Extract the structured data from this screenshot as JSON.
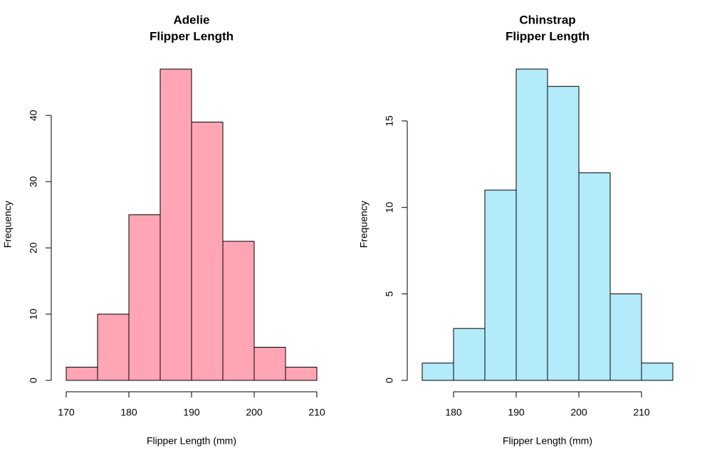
{
  "chart_data": [
    {
      "type": "histogram",
      "title": [
        "Adelie",
        "Flipper Length"
      ],
      "xlabel": "Flipper Length (mm)",
      "ylabel": "Frequency",
      "bins": [
        170,
        175,
        180,
        185,
        190,
        195,
        200,
        205,
        210
      ],
      "values": [
        2,
        10,
        25,
        47,
        39,
        21,
        5,
        2
      ],
      "color": "#ffa5b4",
      "xlim": [
        170,
        210
      ],
      "ylim": [
        0,
        47
      ],
      "xticks": [
        170,
        180,
        190,
        200,
        210
      ],
      "yticks": [
        0,
        10,
        20,
        30,
        40
      ]
    },
    {
      "type": "histogram",
      "title": [
        "Chinstrap",
        "Flipper Length"
      ],
      "xlabel": "Flipper Length (mm)",
      "ylabel": "Frequency",
      "bins": [
        175,
        180,
        185,
        190,
        195,
        200,
        205,
        210,
        215
      ],
      "values": [
        1,
        3,
        11,
        18,
        17,
        12,
        5,
        1
      ],
      "color": "#b3ebfa",
      "xlim": [
        175,
        215
      ],
      "ylim": [
        0,
        18
      ],
      "xticks": [
        180,
        190,
        200,
        210
      ],
      "yticks": [
        0,
        5,
        10,
        15
      ]
    }
  ]
}
